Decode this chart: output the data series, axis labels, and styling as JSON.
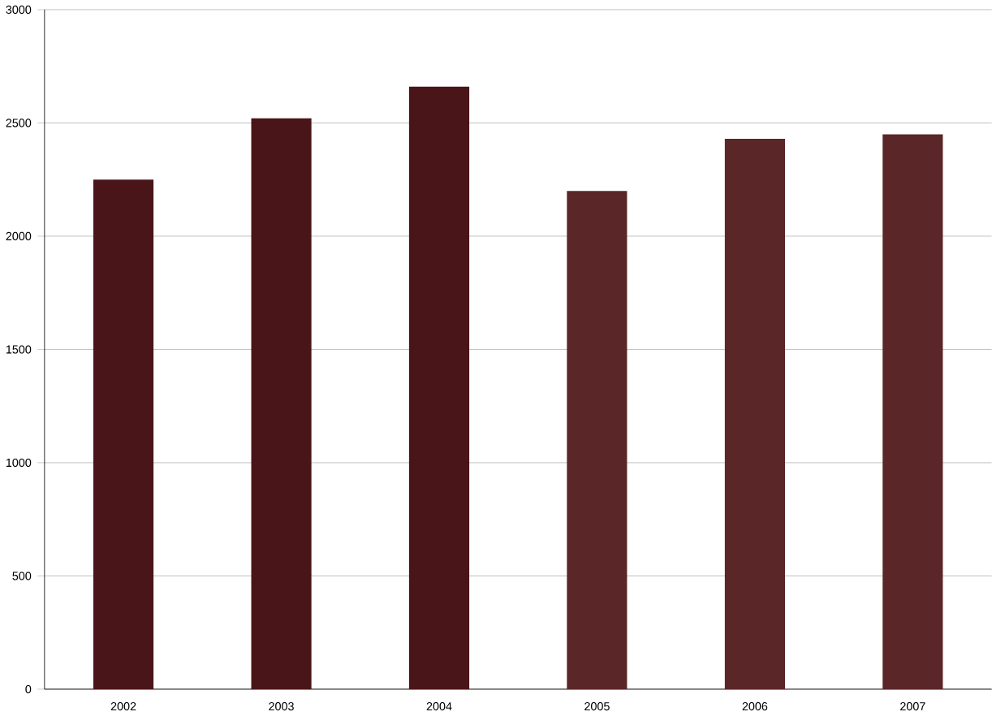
{
  "chart_data": {
    "type": "bar",
    "categories": [
      "2002",
      "2003",
      "2004",
      "2005",
      "2006",
      "2007"
    ],
    "values": [
      2250,
      2520,
      2660,
      2200,
      2430,
      2450
    ],
    "colors": [
      "#4a1518",
      "#4a1518",
      "#4a1518",
      "#5a2628",
      "#5a2628",
      "#5a2628"
    ],
    "ylim": [
      0,
      3000
    ],
    "yticks": [
      0,
      500,
      1000,
      1500,
      2000,
      2500,
      3000
    ],
    "grid": "y"
  }
}
